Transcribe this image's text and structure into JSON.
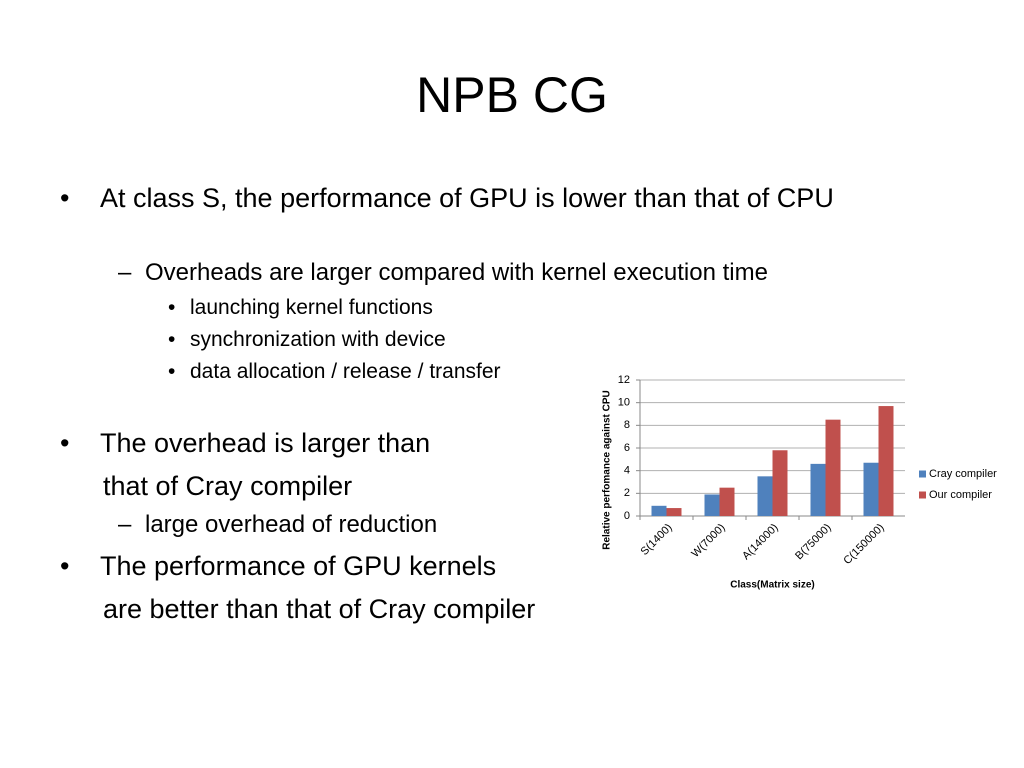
{
  "title": "NPB CG",
  "bullets": [
    {
      "text": "At class S, the performance of GPU is lower than that of CPU",
      "sub": [
        {
          "text": "Overheads are larger compared with kernel execution time",
          "sub": [
            "launching kernel functions",
            "synchronization with device",
            "data allocation / release / transfer"
          ]
        }
      ]
    },
    {
      "lines": [
        "The overhead is larger than",
        "that of Cray compiler"
      ],
      "sub": [
        {
          "text": "large overhead of reduction"
        }
      ]
    },
    {
      "lines": [
        "The performance of GPU kernels",
        "are better than that of Cray compiler"
      ]
    }
  ],
  "chart_data": {
    "type": "bar",
    "categories": [
      "S(1400)",
      "W(7000)",
      "A(14000)",
      "B(75000)",
      "C(150000)"
    ],
    "series": [
      {
        "name": "Cray compiler",
        "color": "#4f81bd",
        "values": [
          0.9,
          1.9,
          3.5,
          4.6,
          4.7
        ]
      },
      {
        "name": "Our compiler",
        "color": "#c0504d",
        "values": [
          0.7,
          2.5,
          5.8,
          8.5,
          9.7
        ]
      }
    ],
    "ylim": [
      0,
      12
    ],
    "yticks": [
      0,
      2,
      4,
      6,
      8,
      10,
      12
    ],
    "xlabel": "Class(Matrix size)",
    "ylabel": "Relative perfomance against CPU",
    "grid": true,
    "legend": "right"
  }
}
